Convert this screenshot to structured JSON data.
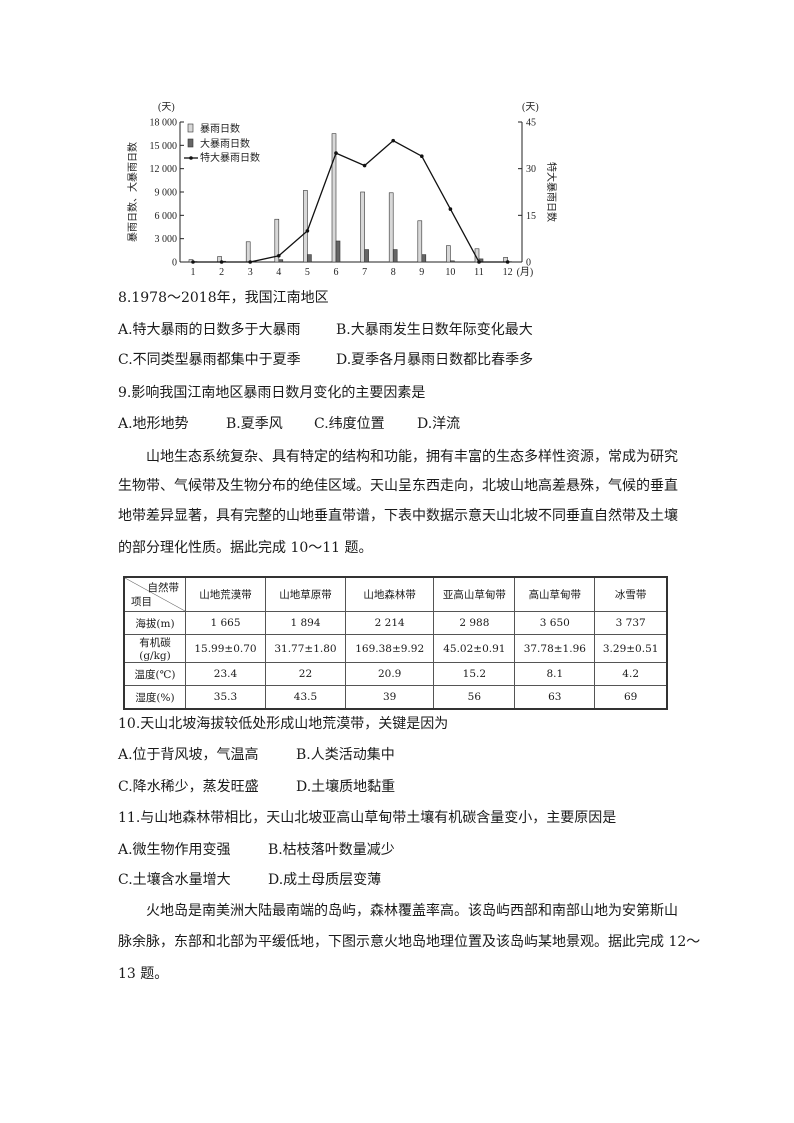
{
  "chart_data": {
    "type": "bar+line",
    "categories": [
      "1",
      "2",
      "3",
      "4",
      "5",
      "6",
      "7",
      "8",
      "9",
      "10",
      "11",
      "12"
    ],
    "x_unit": "(月)",
    "left_axis": {
      "label": "暴雨日数、大暴雨日数",
      "unit": "(天)",
      "range": [
        0,
        18000
      ],
      "ticks": [
        "0",
        "3 000",
        "6 000",
        "9 000",
        "12 000",
        "15 000",
        "18 000"
      ]
    },
    "right_axis": {
      "label": "特大暴雨日数",
      "unit": "(天)",
      "range": [
        0,
        45
      ],
      "ticks": [
        "0",
        "15",
        "30",
        "45"
      ]
    },
    "series": [
      {
        "name": "暴雨日数",
        "type": "bar",
        "axis": "left",
        "color": "#d8d8d8",
        "values": [
          300,
          700,
          2600,
          5500,
          9200,
          16500,
          9000,
          8900,
          5300,
          2100,
          1700,
          600
        ]
      },
      {
        "name": "大暴雨日数",
        "type": "bar",
        "axis": "left",
        "color": "#666666",
        "values": [
          50,
          100,
          50,
          300,
          950,
          2700,
          1600,
          1600,
          950,
          150,
          400,
          50
        ]
      },
      {
        "name": "特大暴雨日数",
        "type": "line",
        "axis": "right",
        "color": "#111111",
        "values": [
          0,
          0,
          0,
          2,
          10,
          35,
          31,
          39,
          34,
          17,
          0,
          0
        ]
      }
    ],
    "legend_position": "top-left",
    "grid": false
  },
  "q8": {
    "stem": "8.1978～2018年，我国江南地区",
    "options": [
      "A.特大暴雨的日数多于大暴雨",
      "B.大暴雨发生日数年际变化最大",
      "C.不同类型暴雨都集中于夏季",
      "D.夏季各月暴雨日数都比春季多"
    ]
  },
  "q9": {
    "stem": "9.影响我国江南地区暴雨日数月变化的主要因素是",
    "options": [
      "A.地形地势",
      "B.夏季风",
      "C.纬度位置",
      "D.洋流"
    ]
  },
  "passage1": [
    "山地生态系统复杂、具有特定的结构和功能，拥有丰富的生态多样性资源，常成为研究",
    "生物带、气候带及生物分布的绝佳区域。天山呈东西走向，北坡山地高差悬殊，气候的垂直",
    "地带差异显著，具有完整的山地垂直带谱，下表中数据示意天山北坡不同垂直自然带及土壤",
    "的部分理化性质。据此完成 10～11 题。"
  ],
  "table": {
    "corner_top": "自然带",
    "corner_bottom": "项目",
    "columns": [
      "山地荒漠带",
      "山地草原带",
      "山地森林带",
      "亚高山草甸带",
      "高山草甸带",
      "冰雪带"
    ],
    "rows": [
      {
        "label": "海拔(m)",
        "values": [
          "1 665",
          "1 894",
          "2 214",
          "2 988",
          "3 650",
          "3 737"
        ]
      },
      {
        "label": "有机碳(g/kg)",
        "values": [
          "15.99±0.70",
          "31.77±1.80",
          "169.38±9.92",
          "45.02±0.91",
          "37.78±1.96",
          "3.29±0.51"
        ]
      },
      {
        "label": "温度(℃)",
        "values": [
          "23.4",
          "22",
          "20.9",
          "15.2",
          "8.1",
          "4.2"
        ]
      },
      {
        "label": "湿度(%)",
        "values": [
          "35.3",
          "43.5",
          "39",
          "56",
          "63",
          "69"
        ]
      }
    ]
  },
  "q10": {
    "stem": "10.天山北坡海拔较低处形成山地荒漠带，关键是因为",
    "options": [
      "A.位于背风坡，气温高",
      "B.人类活动集中",
      "C.降水稀少，蒸发旺盛",
      "D.土壤质地黏重"
    ]
  },
  "q11": {
    "stem": "11.与山地森林带相比，天山北坡亚高山草甸带土壤有机碳含量变小，主要原因是",
    "options": [
      "A.微生物作用变强",
      "B.枯枝落叶数量减少",
      "C.土壤含水量增大",
      "D.成土母质层变薄"
    ]
  },
  "passage2": [
    "火地岛是南美洲大陆最南端的岛屿，森林覆盖率高。该岛屿西部和南部山地为安第斯山",
    "脉余脉，东部和北部为平缓低地，下图示意火地岛地理位置及该岛屿某地景观。据此完成 12～",
    "13 题。"
  ]
}
